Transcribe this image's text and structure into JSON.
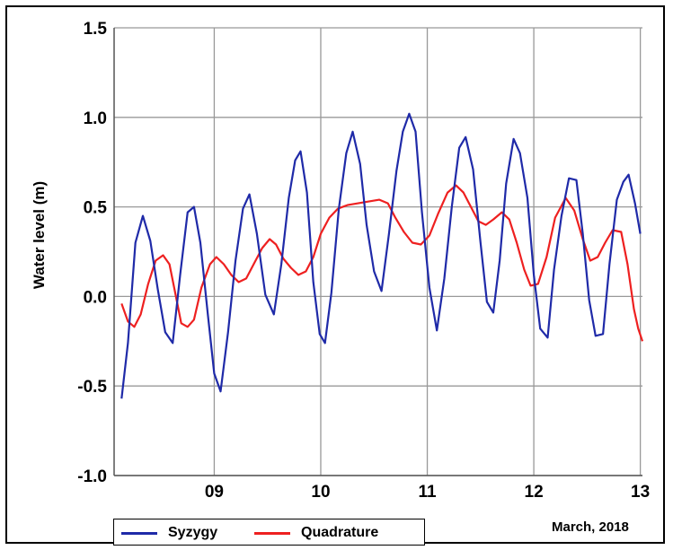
{
  "chart_data": {
    "type": "line",
    "title": "",
    "xlabel": "March, 2018",
    "ylabel": "Water level (m)",
    "xlim": [
      8.06,
      13.02
    ],
    "ylim": [
      -1.0,
      1.5
    ],
    "x_ticks": [
      "09",
      "10",
      "11",
      "12",
      "13"
    ],
    "x_tick_values": [
      9,
      10,
      11,
      12,
      13
    ],
    "y_ticks": [
      "1.5",
      "1.0",
      "0.5",
      "0.0",
      "-0.5",
      "-1.0"
    ],
    "y_tick_values": [
      1.5,
      1.0,
      0.5,
      0.0,
      -0.5,
      -1.0
    ],
    "grid": true,
    "legend_position": "bottom-left",
    "series": [
      {
        "name": "Syzygy",
        "color": "#1f2aa8",
        "points": [
          [
            8.13,
            -0.57
          ],
          [
            8.19,
            -0.26
          ],
          [
            8.26,
            0.3
          ],
          [
            8.33,
            0.45
          ],
          [
            8.4,
            0.31
          ],
          [
            8.47,
            0.04
          ],
          [
            8.54,
            -0.2
          ],
          [
            8.61,
            -0.26
          ],
          [
            8.68,
            0.12
          ],
          [
            8.75,
            0.47
          ],
          [
            8.81,
            0.5
          ],
          [
            8.87,
            0.3
          ],
          [
            8.94,
            -0.1
          ],
          [
            9.0,
            -0.43
          ],
          [
            9.06,
            -0.53
          ],
          [
            9.13,
            -0.2
          ],
          [
            9.2,
            0.2
          ],
          [
            9.27,
            0.49
          ],
          [
            9.33,
            0.57
          ],
          [
            9.4,
            0.35
          ],
          [
            9.48,
            0.01
          ],
          [
            9.56,
            -0.1
          ],
          [
            9.63,
            0.18
          ],
          [
            9.7,
            0.55
          ],
          [
            9.76,
            0.76
          ],
          [
            9.81,
            0.81
          ],
          [
            9.87,
            0.58
          ],
          [
            9.93,
            0.08
          ],
          [
            9.99,
            -0.21
          ],
          [
            10.04,
            -0.26
          ],
          [
            10.1,
            0.02
          ],
          [
            10.17,
            0.49
          ],
          [
            10.24,
            0.8
          ],
          [
            10.3,
            0.92
          ],
          [
            10.37,
            0.74
          ],
          [
            10.43,
            0.4
          ],
          [
            10.5,
            0.14
          ],
          [
            10.57,
            0.03
          ],
          [
            10.64,
            0.35
          ],
          [
            10.71,
            0.7
          ],
          [
            10.77,
            0.92
          ],
          [
            10.83,
            1.02
          ],
          [
            10.89,
            0.92
          ],
          [
            10.95,
            0.47
          ],
          [
            11.02,
            0.05
          ],
          [
            11.09,
            -0.19
          ],
          [
            11.16,
            0.1
          ],
          [
            11.23,
            0.5
          ],
          [
            11.3,
            0.83
          ],
          [
            11.36,
            0.89
          ],
          [
            11.43,
            0.71
          ],
          [
            11.5,
            0.3
          ],
          [
            11.56,
            -0.03
          ],
          [
            11.62,
            -0.09
          ],
          [
            11.68,
            0.2
          ],
          [
            11.74,
            0.63
          ],
          [
            11.81,
            0.88
          ],
          [
            11.87,
            0.8
          ],
          [
            11.94,
            0.55
          ],
          [
            12.0,
            0.12
          ],
          [
            12.06,
            -0.18
          ],
          [
            12.13,
            -0.23
          ],
          [
            12.19,
            0.15
          ],
          [
            12.26,
            0.45
          ],
          [
            12.33,
            0.66
          ],
          [
            12.4,
            0.65
          ],
          [
            12.46,
            0.35
          ],
          [
            12.52,
            -0.02
          ],
          [
            12.58,
            -0.22
          ],
          [
            12.65,
            -0.21
          ],
          [
            12.71,
            0.18
          ],
          [
            12.78,
            0.54
          ],
          [
            12.84,
            0.64
          ],
          [
            12.89,
            0.68
          ],
          [
            12.95,
            0.52
          ],
          [
            13.0,
            0.35
          ]
        ]
      },
      {
        "name": "Quadrature",
        "color": "#ee2020",
        "points": [
          [
            8.13,
            -0.04
          ],
          [
            8.19,
            -0.14
          ],
          [
            8.25,
            -0.17
          ],
          [
            8.31,
            -0.1
          ],
          [
            8.38,
            0.07
          ],
          [
            8.45,
            0.2
          ],
          [
            8.52,
            0.23
          ],
          [
            8.58,
            0.18
          ],
          [
            8.64,
            0.0
          ],
          [
            8.69,
            -0.15
          ],
          [
            8.75,
            -0.17
          ],
          [
            8.81,
            -0.13
          ],
          [
            8.88,
            0.05
          ],
          [
            8.96,
            0.18
          ],
          [
            9.02,
            0.22
          ],
          [
            9.09,
            0.18
          ],
          [
            9.16,
            0.12
          ],
          [
            9.23,
            0.08
          ],
          [
            9.3,
            0.1
          ],
          [
            9.37,
            0.18
          ],
          [
            9.45,
            0.27
          ],
          [
            9.52,
            0.32
          ],
          [
            9.58,
            0.29
          ],
          [
            9.65,
            0.21
          ],
          [
            9.72,
            0.16
          ],
          [
            9.79,
            0.12
          ],
          [
            9.86,
            0.14
          ],
          [
            9.93,
            0.22
          ],
          [
            10.0,
            0.35
          ],
          [
            10.08,
            0.44
          ],
          [
            10.16,
            0.49
          ],
          [
            10.25,
            0.51
          ],
          [
            10.35,
            0.52
          ],
          [
            10.45,
            0.53
          ],
          [
            10.55,
            0.54
          ],
          [
            10.63,
            0.52
          ],
          [
            10.7,
            0.44
          ],
          [
            10.78,
            0.36
          ],
          [
            10.86,
            0.3
          ],
          [
            10.94,
            0.29
          ],
          [
            11.02,
            0.34
          ],
          [
            11.1,
            0.46
          ],
          [
            11.19,
            0.58
          ],
          [
            11.27,
            0.62
          ],
          [
            11.34,
            0.58
          ],
          [
            11.41,
            0.5
          ],
          [
            11.48,
            0.42
          ],
          [
            11.55,
            0.4
          ],
          [
            11.62,
            0.43
          ],
          [
            11.7,
            0.47
          ],
          [
            11.77,
            0.43
          ],
          [
            11.84,
            0.3
          ],
          [
            11.91,
            0.15
          ],
          [
            11.97,
            0.06
          ],
          [
            12.04,
            0.07
          ],
          [
            12.12,
            0.22
          ],
          [
            12.2,
            0.44
          ],
          [
            12.3,
            0.55
          ],
          [
            12.38,
            0.48
          ],
          [
            12.46,
            0.32
          ],
          [
            12.53,
            0.2
          ],
          [
            12.6,
            0.22
          ],
          [
            12.67,
            0.3
          ],
          [
            12.74,
            0.37
          ],
          [
            12.82,
            0.36
          ],
          [
            12.88,
            0.18
          ],
          [
            12.94,
            -0.07
          ],
          [
            12.98,
            -0.18
          ],
          [
            13.02,
            -0.25
          ]
        ]
      }
    ]
  }
}
